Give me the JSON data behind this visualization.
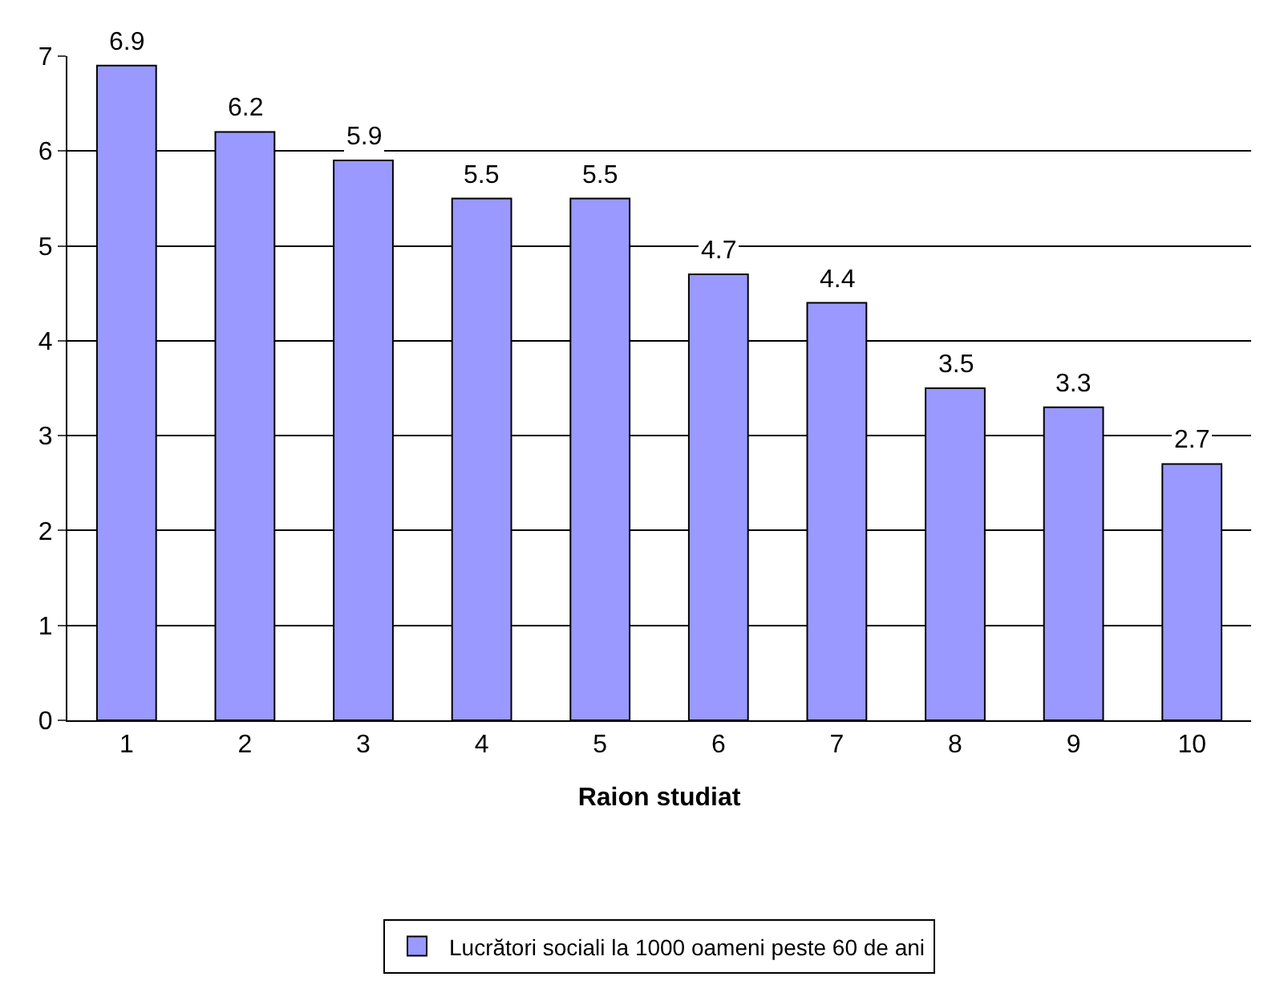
{
  "chart_data": {
    "type": "bar",
    "xlabel": "Raion studiat",
    "categories": [
      "1",
      "2",
      "3",
      "4",
      "5",
      "6",
      "7",
      "8",
      "9",
      "10"
    ],
    "series": [
      {
        "name": "Lucrători sociali la 1000 oameni peste 60 de ani",
        "color": "#9999ff",
        "values": [
          6.9,
          6.2,
          5.9,
          5.5,
          5.5,
          4.7,
          4.4,
          3.5,
          3.3,
          2.7
        ]
      }
    ],
    "ylim": [
      0,
      7
    ],
    "yticks": [
      0,
      1,
      2,
      3,
      4,
      5,
      6,
      7
    ],
    "grid": "y",
    "legend": "bottom",
    "data_labels": true
  }
}
